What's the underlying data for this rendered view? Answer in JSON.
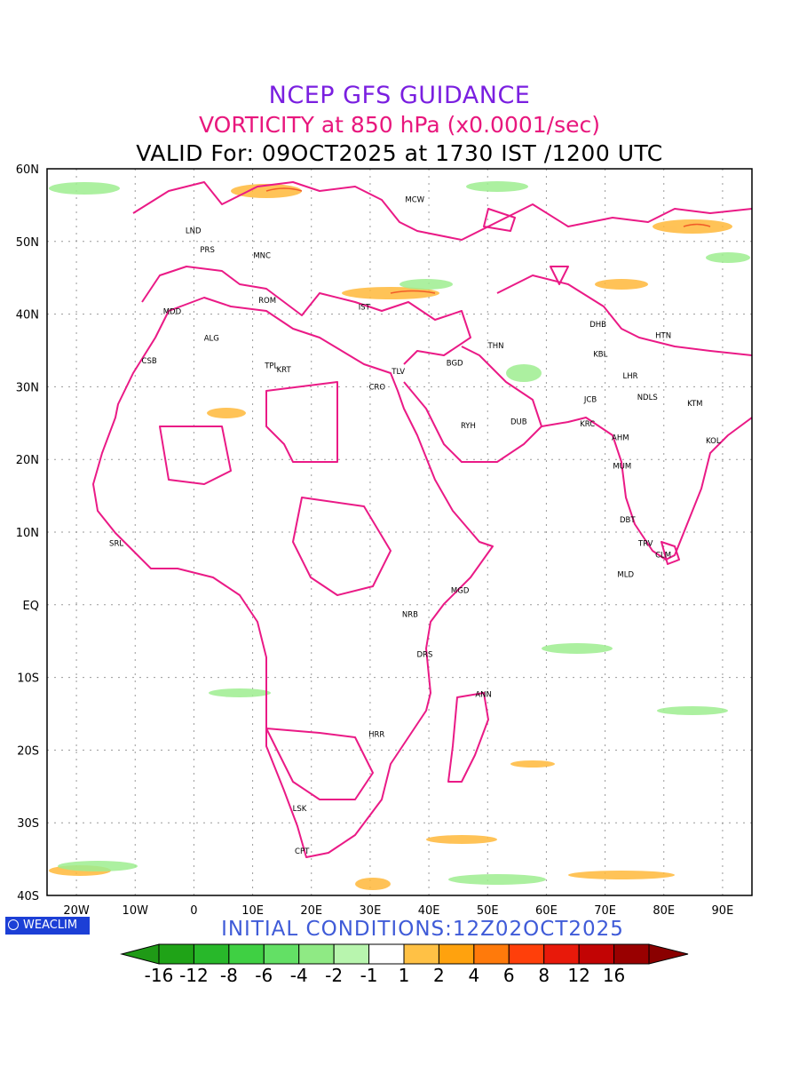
{
  "titles": {
    "line1": "NCEP GFS GUIDANCE",
    "line2": "VORTICITY at 850 hPa (x0.0001/sec)",
    "line3": "VALID For: 09OCT2025 at 1730 IST /1200 UTC",
    "init": "INITIAL CONDITIONS:12Z02OCT2025"
  },
  "colors": {
    "title1": "#7a1fe0",
    "title2": "#e8177d",
    "title3": "#000000",
    "init": "#3f5bd8",
    "border": "#ea1a86",
    "grid": "#9a9a9a"
  },
  "logo": {
    "text": "WEACLIM",
    "icon": "globe-icon"
  },
  "map": {
    "lat_labels": [
      "60N",
      "50N",
      "40N",
      "30N",
      "20N",
      "10N",
      "EQ",
      "10S",
      "20S",
      "30S",
      "40S"
    ],
    "lon_labels": [
      "20W",
      "10W",
      "0",
      "10E",
      "20E",
      "30E",
      "40E",
      "50E",
      "60E",
      "70E",
      "80E",
      "90E"
    ],
    "lat_range": [
      -40,
      60
    ],
    "lon_range": [
      -25,
      95
    ],
    "cities": [
      {
        "code": "MCW",
        "lon": 37.6,
        "lat": 55.8
      },
      {
        "code": "LND",
        "lon": -0.1,
        "lat": 51.5
      },
      {
        "code": "PRS",
        "lon": 2.3,
        "lat": 48.9
      },
      {
        "code": "MNC",
        "lon": 11.6,
        "lat": 48.1
      },
      {
        "code": "ROM",
        "lon": 12.5,
        "lat": 41.9
      },
      {
        "code": "MDD",
        "lon": -3.7,
        "lat": 40.4
      },
      {
        "code": "IST",
        "lon": 29.0,
        "lat": 41.0
      },
      {
        "code": "ALG",
        "lon": 3.0,
        "lat": 36.7
      },
      {
        "code": "CSB",
        "lon": -7.6,
        "lat": 33.6
      },
      {
        "code": "TPL",
        "lon": 13.2,
        "lat": 32.9
      },
      {
        "code": "KRT",
        "lon": 15.3,
        "lat": 32.4
      },
      {
        "code": "TLV",
        "lon": 34.8,
        "lat": 32.1
      },
      {
        "code": "CRO",
        "lon": 31.2,
        "lat": 30.0
      },
      {
        "code": "BGD",
        "lon": 44.4,
        "lat": 33.3
      },
      {
        "code": "THN",
        "lon": 51.4,
        "lat": 35.7
      },
      {
        "code": "DHB",
        "lon": 68.8,
        "lat": 38.6
      },
      {
        "code": "KBL",
        "lon": 69.2,
        "lat": 34.5
      },
      {
        "code": "HTN",
        "lon": 79.9,
        "lat": 37.1
      },
      {
        "code": "LHR",
        "lon": 74.3,
        "lat": 31.5
      },
      {
        "code": "JCB",
        "lon": 67.5,
        "lat": 28.3
      },
      {
        "code": "NDLS",
        "lon": 77.2,
        "lat": 28.6
      },
      {
        "code": "KTM",
        "lon": 85.3,
        "lat": 27.7
      },
      {
        "code": "RYH",
        "lon": 46.7,
        "lat": 24.7
      },
      {
        "code": "DUB",
        "lon": 55.3,
        "lat": 25.2
      },
      {
        "code": "KRC",
        "lon": 67.0,
        "lat": 24.9
      },
      {
        "code": "AHM",
        "lon": 72.6,
        "lat": 23.0
      },
      {
        "code": "KOL",
        "lon": 88.4,
        "lat": 22.6
      },
      {
        "code": "MUM",
        "lon": 72.9,
        "lat": 19.1
      },
      {
        "code": "DBT",
        "lon": 73.8,
        "lat": 11.7
      },
      {
        "code": "SRL",
        "lon": -13.2,
        "lat": 8.5
      },
      {
        "code": "TRV",
        "lon": 76.9,
        "lat": 8.5
      },
      {
        "code": "CLM",
        "lon": 79.9,
        "lat": 6.9
      },
      {
        "code": "MLD",
        "lon": 73.5,
        "lat": 4.2
      },
      {
        "code": "MGD",
        "lon": 45.3,
        "lat": 2.0
      },
      {
        "code": "NRB",
        "lon": 36.8,
        "lat": -1.3
      },
      {
        "code": "DRS",
        "lon": 39.3,
        "lat": -6.8
      },
      {
        "code": "ANN",
        "lon": 49.3,
        "lat": -12.3
      },
      {
        "code": "HRR",
        "lon": 31.1,
        "lat": -17.8
      },
      {
        "code": "LSK",
        "lon": 18.0,
        "lat": -28.0
      },
      {
        "code": "CPT",
        "lon": 18.4,
        "lat": -33.9
      }
    ]
  },
  "colorbar": {
    "labels": [
      "-16",
      "-12",
      "-8",
      "-6",
      "-4",
      "-2",
      "-1",
      "1",
      "2",
      "4",
      "6",
      "8",
      "12",
      "16"
    ],
    "colors": [
      "#1fa317",
      "#28b82a",
      "#3fd043",
      "#63e065",
      "#8fea84",
      "#b8f5ae",
      "#ffffff",
      "#ffc145",
      "#ffa20e",
      "#ff7a0b",
      "#ff3f0a",
      "#e8190a",
      "#c20404",
      "#990000"
    ],
    "low_end": "#1f9a16",
    "high_end": "#8a0000"
  }
}
